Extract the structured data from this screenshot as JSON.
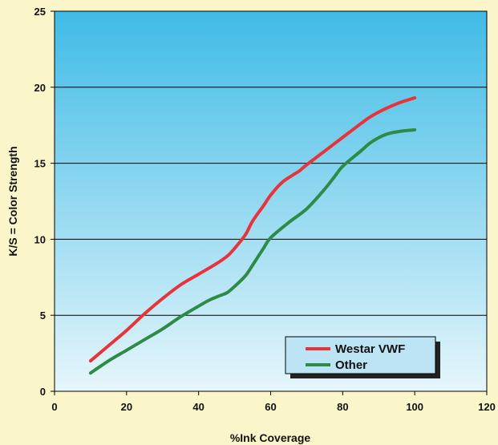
{
  "chart_data": {
    "type": "line",
    "xlabel": "%Ink Coverage",
    "ylabel": "K/S = Color Strength",
    "xlim": [
      0,
      120
    ],
    "ylim": [
      0,
      25
    ],
    "x_ticks": [
      0,
      20,
      40,
      60,
      80,
      100,
      120
    ],
    "y_ticks": [
      0,
      5,
      10,
      15,
      20,
      25
    ],
    "grid": "horizontal",
    "legend_position": "bottom-right",
    "series": [
      {
        "name": "Westar VWF",
        "color": "#e8333a",
        "x": [
          10,
          15,
          20,
          25,
          30,
          35,
          40,
          45,
          48,
          50,
          53,
          55,
          58,
          60,
          63,
          66,
          68,
          70,
          75,
          80,
          85,
          88,
          92,
          96,
          100
        ],
        "y": [
          2.0,
          3.0,
          4.0,
          5.1,
          6.1,
          7.0,
          7.7,
          8.4,
          8.9,
          9.4,
          10.3,
          11.2,
          12.2,
          12.9,
          13.7,
          14.2,
          14.5,
          14.9,
          15.8,
          16.7,
          17.6,
          18.1,
          18.6,
          19.0,
          19.3
        ],
        "marker": "none"
      },
      {
        "name": "Other",
        "color": "#2e8b45",
        "x": [
          10,
          15,
          20,
          25,
          30,
          35,
          40,
          43,
          46,
          48,
          50,
          53,
          55,
          58,
          60,
          65,
          70,
          75,
          78,
          80,
          85,
          88,
          92,
          96,
          100
        ],
        "y": [
          1.2,
          2.0,
          2.7,
          3.4,
          4.1,
          4.9,
          5.6,
          6.0,
          6.3,
          6.5,
          6.9,
          7.6,
          8.3,
          9.4,
          10.1,
          11.1,
          12.0,
          13.3,
          14.2,
          14.8,
          15.8,
          16.4,
          16.9,
          17.1,
          17.2
        ],
        "marker": "none"
      }
    ]
  },
  "colors": {
    "page_background": "#fbf6c9",
    "plot_gradient_top": "#3fbbe6",
    "plot_gradient_bottom": "#e6f6fb",
    "legend_background": "#bde4f4"
  }
}
